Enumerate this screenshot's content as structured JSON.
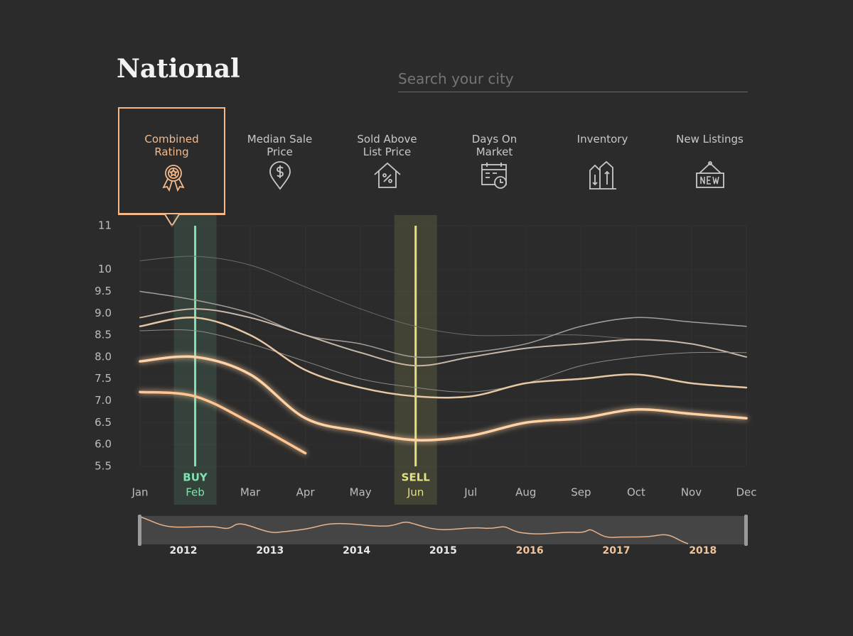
{
  "header": {
    "title": "National",
    "search_placeholder": "Search your city"
  },
  "tabs": [
    {
      "label": "Combined Rating",
      "active": true
    },
    {
      "label": "Median Sale Price"
    },
    {
      "label": "Sold Above List Price"
    },
    {
      "label": "Days On Market"
    },
    {
      "label": "Inventory"
    },
    {
      "label": "New Listings"
    }
  ],
  "chart_data": {
    "type": "line",
    "categories": [
      "Jan",
      "Feb",
      "Mar",
      "Apr",
      "May",
      "Jun",
      "Jul",
      "Aug",
      "Sep",
      "Oct",
      "Nov",
      "Dec"
    ],
    "ylim": [
      5.5,
      11
    ],
    "yticks": [
      5.5,
      {
        "value": 6,
        "label": "6.0"
      },
      6.5,
      {
        "value": 7,
        "label": "7.0"
      },
      7.5,
      {
        "value": 8,
        "label": "8.0"
      },
      8.5,
      {
        "value": 9,
        "label": "9.0"
      },
      9.5,
      10,
      11
    ],
    "grid": true,
    "series": [
      {
        "color": "#6f6b67",
        "values": [
          10.2,
          10.3,
          10.1,
          9.6,
          9.1,
          8.7,
          8.5,
          8.5,
          8.5,
          8.4,
          8.3,
          8.0
        ]
      },
      {
        "color": "#a39d97",
        "values": [
          9.5,
          9.3,
          9.0,
          8.5,
          8.3,
          8.0,
          8.1,
          8.3,
          8.7,
          8.9,
          8.8,
          8.7
        ]
      },
      {
        "color": "#c9b8a6",
        "values": [
          8.9,
          9.1,
          8.9,
          8.5,
          8.1,
          7.8,
          8.0,
          8.2,
          8.3,
          8.4,
          8.3,
          8.0
        ]
      },
      {
        "color": "#8f8b87",
        "values": [
          8.6,
          8.6,
          8.3,
          7.9,
          7.5,
          7.3,
          7.2,
          7.4,
          7.8,
          8.0,
          8.1,
          8.1
        ]
      },
      {
        "color": "#e8c7a3",
        "values": [
          8.7,
          8.9,
          8.5,
          7.7,
          7.3,
          7.1,
          7.1,
          7.4,
          7.5,
          7.6,
          7.4,
          7.3
        ]
      },
      {
        "color": "#ffd1a3",
        "values": [
          7.9,
          8.0,
          7.6,
          6.6,
          6.3,
          6.1,
          6.2,
          6.5,
          6.6,
          6.8,
          6.7,
          6.6
        ]
      },
      {
        "color": "#ffc694",
        "values": [
          7.2,
          7.1,
          6.5,
          5.8,
          null,
          null,
          null,
          null,
          null,
          null,
          null,
          null
        ]
      }
    ],
    "annotations": [
      {
        "label": "BUY",
        "x": "Feb",
        "color": "#7fe3b1"
      },
      {
        "label": "SELL",
        "x": "Jun",
        "color": "#e3e27f"
      }
    ]
  },
  "timeline": {
    "years": [
      "2012",
      "2013",
      "2014",
      "2015",
      "2016",
      "2017",
      "2018"
    ]
  }
}
